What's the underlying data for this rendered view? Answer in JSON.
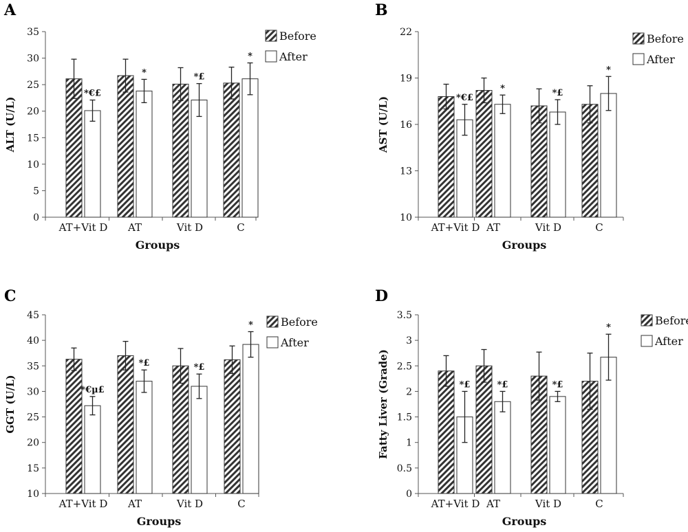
{
  "legend": {
    "before": "Before",
    "after": "After"
  },
  "chart_data": [
    {
      "panel": "A",
      "type": "bar",
      "categories": [
        "AT+Vit D",
        "AT",
        "Vit D",
        "C"
      ],
      "series": [
        {
          "name": "Before",
          "values": [
            26.1,
            26.7,
            25.1,
            25.3
          ],
          "errors": [
            3.7,
            3.1,
            3.1,
            3.0
          ]
        },
        {
          "name": "After",
          "values": [
            20.1,
            23.8,
            22.1,
            26.1
          ],
          "errors": [
            2.0,
            2.2,
            3.1,
            3.0
          ]
        }
      ],
      "annotations": [
        "*€£",
        "*",
        "*£",
        "*"
      ],
      "ylabel": "ALT (U/L)",
      "xlabel": "Groups",
      "ylim": [
        0,
        35
      ],
      "yticks": [
        0,
        5,
        10,
        15,
        20,
        25,
        30,
        35
      ]
    },
    {
      "panel": "B",
      "type": "bar",
      "categories": [
        "AT+Vit D",
        "AT",
        "Vit D",
        "C"
      ],
      "series": [
        {
          "name": "Before",
          "values": [
            17.8,
            18.2,
            17.2,
            17.3
          ],
          "errors": [
            0.8,
            0.8,
            1.1,
            1.2
          ]
        },
        {
          "name": "After",
          "values": [
            16.3,
            17.3,
            16.8,
            18.0
          ],
          "errors": [
            1.0,
            0.6,
            0.8,
            1.1
          ]
        }
      ],
      "annotations": [
        "*€£",
        "*",
        "*£",
        "*"
      ],
      "ylabel": "AST (U/L)",
      "xlabel": "Groups",
      "ylim": [
        10,
        22
      ],
      "yticks": [
        10,
        13,
        16,
        19,
        22
      ]
    },
    {
      "panel": "C",
      "type": "bar",
      "categories": [
        "AT+Vit D",
        "AT",
        "Vit D",
        "C"
      ],
      "series": [
        {
          "name": "Before",
          "values": [
            36.3,
            37.0,
            35.0,
            36.2
          ],
          "errors": [
            2.2,
            2.8,
            3.4,
            2.7
          ]
        },
        {
          "name": "After",
          "values": [
            27.2,
            32.0,
            31.0,
            39.2
          ],
          "errors": [
            1.8,
            2.2,
            2.4,
            2.5
          ]
        }
      ],
      "annotations": [
        "*€µ£",
        "*£",
        "*£",
        "*"
      ],
      "ylabel": "GGT (U/L)",
      "xlabel": "Groups",
      "ylim": [
        10,
        45
      ],
      "yticks": [
        10,
        15,
        20,
        25,
        30,
        35,
        40,
        45
      ]
    },
    {
      "panel": "D",
      "type": "bar",
      "categories": [
        "AT+Vit D",
        "AT",
        "Vit D",
        "C"
      ],
      "series": [
        {
          "name": "Before",
          "values": [
            2.4,
            2.5,
            2.3,
            2.2
          ],
          "errors": [
            0.3,
            0.32,
            0.47,
            0.55
          ]
        },
        {
          "name": "After",
          "values": [
            1.5,
            1.8,
            1.9,
            2.67
          ],
          "errors": [
            0.5,
            0.2,
            0.1,
            0.45
          ]
        }
      ],
      "annotations": [
        "*£",
        "*£",
        "*£",
        "*"
      ],
      "ylabel": "Fatty Liver (Grade)",
      "xlabel": "Groups",
      "ylim": [
        0,
        3.5
      ],
      "yticks": [
        0,
        0.5,
        1,
        1.5,
        2,
        2.5,
        3,
        3.5
      ]
    }
  ]
}
